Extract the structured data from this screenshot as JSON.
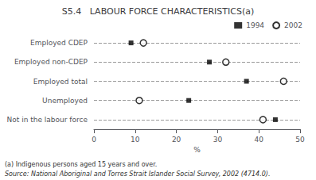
{
  "chart_data": {
    "type": "scatter",
    "title": "S5.4   LABOUR FORCE CHARACTERISTICS(a)",
    "categories": [
      "Employed CDEP",
      "Employed non-CDEP",
      "Employed total",
      "Unemployed",
      "Not in the labour force"
    ],
    "series": [
      {
        "name": "1994",
        "color": "#000000",
        "marker": "square",
        "values": [
          9,
          28,
          37,
          23,
          44
        ]
      },
      {
        "name": "2002",
        "color": "#000000",
        "marker": "circle_open",
        "values": [
          12,
          32,
          46,
          11,
          41
        ]
      }
    ],
    "xlabel": "%",
    "xlim": [
      0,
      50
    ],
    "xticks": [
      0,
      10,
      20,
      30,
      40,
      50
    ],
    "grid": "y",
    "legend": "upper right",
    "annotations": [
      "(a) Indigenous persons aged 15 years and over.",
      "Source: National Aboriginal and Torres Strait Islander Social Survey, 2002 (4714.0)."
    ]
  }
}
